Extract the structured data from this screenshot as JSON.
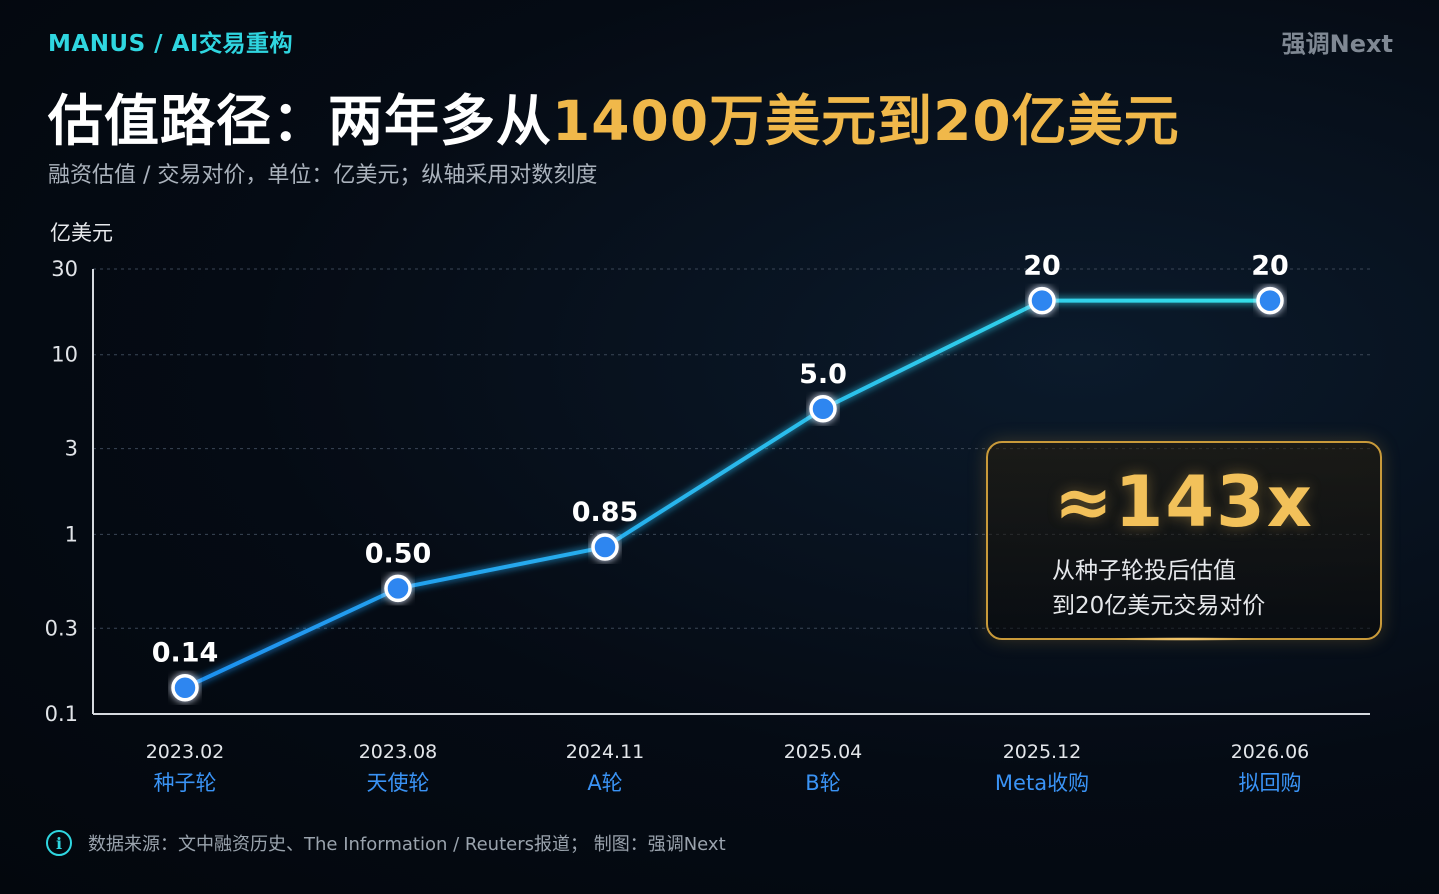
{
  "header": {
    "brand": "MANUS / AI交易重构",
    "signature": "强调Next",
    "title_part1": "估值路径：两年多从",
    "title_highlight": "1400万美元到20亿美元",
    "subtitle": "融资估值 / 交易对价，单位：亿美元；纵轴采用对数刻度"
  },
  "chart_data": {
    "type": "line",
    "scale": "log",
    "ylabel": "亿美元",
    "ylim": [
      0.1,
      30
    ],
    "yticks": [
      0.1,
      0.3,
      1,
      3,
      10,
      30
    ],
    "ytick_labels": [
      "0.1",
      "0.3",
      "1",
      "3",
      "10",
      "30"
    ],
    "categories": [
      "2023.02",
      "2023.08",
      "2024.11",
      "2025.04",
      "2025.12",
      "2026.06"
    ],
    "category_sublabels": [
      "种子轮",
      "天使轮",
      "A轮",
      "B轮",
      "Meta收购",
      "拟回购"
    ],
    "values": [
      0.14,
      0.5,
      0.85,
      5.0,
      20,
      20
    ],
    "data_labels": [
      "0.14",
      "0.50",
      "0.85",
      "5.0",
      "20",
      "20"
    ],
    "grid": true,
    "colors": {
      "line": "#2fd6e6",
      "point": "#2f86f0",
      "sublabel": "#3a93f5"
    }
  },
  "callout": {
    "value": "≈143x",
    "line1": "从种子轮投后估值",
    "line2": "到20亿美元交易对价",
    "color": "#f2c15a"
  },
  "footer": {
    "icon": "info-icon",
    "icon_glyph": "i",
    "text": "数据来源：文中融资历史、The Information / Reuters报道；  制图：强调Next"
  }
}
